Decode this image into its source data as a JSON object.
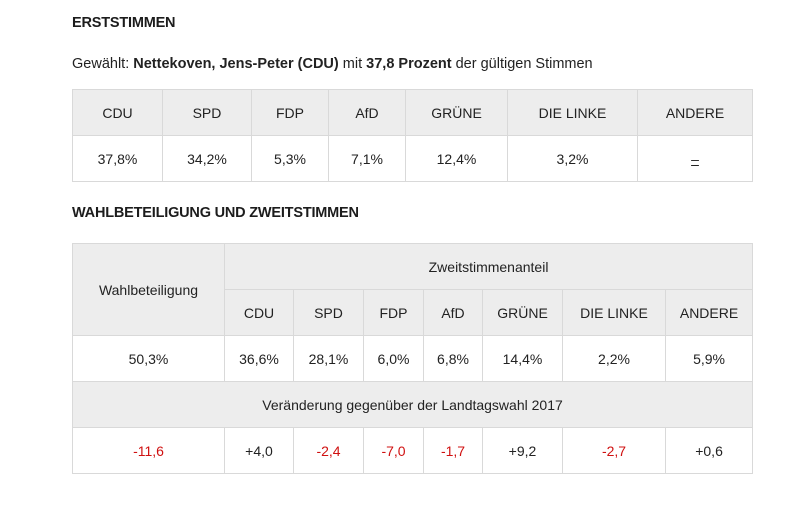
{
  "erststimmen": {
    "heading": "ERSTSTIMMEN",
    "elected_prefix": "Gewählt:",
    "elected_name": "Nettekoven, Jens-Peter (CDU)",
    "elected_mid": "mit",
    "elected_percent": "37,8 Prozent",
    "elected_suffix": "der gültigen Stimmen",
    "parties": [
      "CDU",
      "SPD",
      "FDP",
      "AfD",
      "GRÜNE",
      "DIE LINKE",
      "ANDERE"
    ],
    "values": [
      "37,8%",
      "34,2%",
      "5,3%",
      "7,1%",
      "12,4%",
      "3,2%",
      "–"
    ]
  },
  "zweitstimmen": {
    "heading": "WAHLBETEILIGUNG UND ZWEITSTIMMEN",
    "turnout_label": "Wahlbeteiligung",
    "share_label": "Zweitstimmenanteil",
    "parties": [
      "CDU",
      "SPD",
      "FDP",
      "AfD",
      "GRÜNE",
      "DIE LINKE",
      "ANDERE"
    ],
    "turnout_value": "50,3%",
    "values": [
      "36,6%",
      "28,1%",
      "6,0%",
      "6,8%",
      "14,4%",
      "2,2%",
      "5,9%"
    ],
    "change_label": "Veränderung gegenüber der Landtagswahl 2017",
    "turnout_change": "-11,6",
    "changes": [
      "+4,0",
      "-2,4",
      "-7,0",
      "-1,7",
      "+9,2",
      "-2,7",
      "+0,6"
    ]
  },
  "colors": {
    "negative": "#d01010",
    "header_bg": "#ededed",
    "border": "#d9d9d9"
  }
}
